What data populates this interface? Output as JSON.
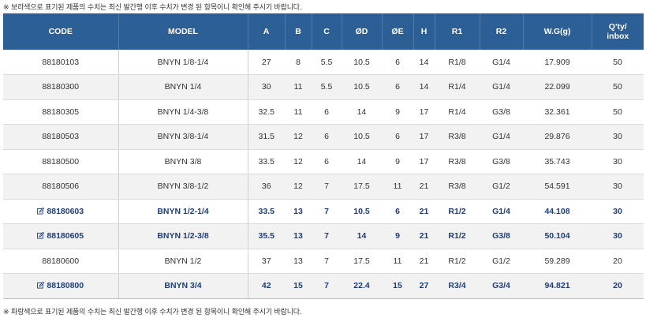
{
  "notes": {
    "top": "※ 보라색으로 표기된 제품의 수치는 최신 발간행 이후 수치가 변경 된 항목이니 확인해 주시기 바랍니다.",
    "bottom": "※ 파랑색으로 표기된 제품의 수치는 최신 발간행 이후 수치가 변경 된 항목이니 확인해 주시기 바랍니다."
  },
  "colors": {
    "header": "#2d5f97",
    "highlight_text": "#1e3e7a",
    "alt_row": "#f2f2f2"
  },
  "columns": [
    {
      "key": "code",
      "label": "CODE"
    },
    {
      "key": "model",
      "label": "MODEL"
    },
    {
      "key": "a",
      "label": "A"
    },
    {
      "key": "b",
      "label": "B"
    },
    {
      "key": "c",
      "label": "C"
    },
    {
      "key": "od",
      "label": "ØD"
    },
    {
      "key": "oe",
      "label": "ØE"
    },
    {
      "key": "h",
      "label": "H"
    },
    {
      "key": "r1",
      "label": "R1"
    },
    {
      "key": "r2",
      "label": "R2"
    },
    {
      "key": "wg",
      "label": "W.G(g)"
    },
    {
      "key": "qty",
      "label": "Q'ty/ inbox"
    }
  ],
  "rows": [
    {
      "code": "88180103",
      "model": "BNYN 1/8-1/4",
      "a": "27",
      "b": "8",
      "c": "5.5",
      "od": "10.5",
      "oe": "6",
      "h": "14",
      "r1": "R1/8",
      "r2": "G1/4",
      "wg": "17.909",
      "qty": "50",
      "highlight": false,
      "icon": ""
    },
    {
      "code": "88180300",
      "model": "BNYN 1/4",
      "a": "30",
      "b": "11",
      "c": "5.5",
      "od": "10.5",
      "oe": "6",
      "h": "14",
      "r1": "R1/4",
      "r2": "G1/4",
      "wg": "22.099",
      "qty": "50",
      "highlight": false,
      "icon": ""
    },
    {
      "code": "88180305",
      "model": "BNYN 1/4-3/8",
      "a": "32.5",
      "b": "11",
      "c": "6",
      "od": "14",
      "oe": "9",
      "h": "17",
      "r1": "R1/4",
      "r2": "G3/8",
      "wg": "32.361",
      "qty": "50",
      "highlight": false,
      "icon": ""
    },
    {
      "code": "88180503",
      "model": "BNYN 3/8-1/4",
      "a": "31.5",
      "b": "12",
      "c": "6",
      "od": "10.5",
      "oe": "6",
      "h": "17",
      "r1": "R3/8",
      "r2": "G1/4",
      "wg": "29.876",
      "qty": "30",
      "highlight": false,
      "icon": ""
    },
    {
      "code": "88180500",
      "model": "BNYN 3/8",
      "a": "33.5",
      "b": "12",
      "c": "6",
      "od": "14",
      "oe": "9",
      "h": "17",
      "r1": "R3/8",
      "r2": "G3/8",
      "wg": "35.743",
      "qty": "30",
      "highlight": false,
      "icon": ""
    },
    {
      "code": "88180506",
      "model": "BNYN 3/8-1/2",
      "a": "36",
      "b": "12",
      "c": "7",
      "od": "17.5",
      "oe": "11",
      "h": "21",
      "r1": "R3/8",
      "r2": "G1/2",
      "wg": "54.591",
      "qty": "30",
      "highlight": false,
      "icon": ""
    },
    {
      "code": "88180603",
      "model": "BNYN 1/2-1/4",
      "a": "33.5",
      "b": "13",
      "c": "7",
      "od": "10.5",
      "oe": "6",
      "h": "21",
      "r1": "R1/2",
      "r2": "G1/4",
      "wg": "44.108",
      "qty": "30",
      "highlight": true,
      "icon": "edit-icon"
    },
    {
      "code": "88180605",
      "model": "BNYN 1/2-3/8",
      "a": "35.5",
      "b": "13",
      "c": "7",
      "od": "14",
      "oe": "9",
      "h": "21",
      "r1": "R1/2",
      "r2": "G3/8",
      "wg": "50.104",
      "qty": "30",
      "highlight": true,
      "icon": "edit-icon"
    },
    {
      "code": "88180600",
      "model": "BNYN 1/2",
      "a": "37",
      "b": "13",
      "c": "7",
      "od": "17.5",
      "oe": "11",
      "h": "21",
      "r1": "R1/2",
      "r2": "G1/2",
      "wg": "59.289",
      "qty": "20",
      "highlight": false,
      "icon": ""
    },
    {
      "code": "88180800",
      "model": "BNYN 3/4",
      "a": "42",
      "b": "15",
      "c": "7",
      "od": "22.4",
      "oe": "15",
      "h": "27",
      "r1": "R3/4",
      "r2": "G3/4",
      "wg": "94.821",
      "qty": "20",
      "highlight": true,
      "icon": "edit-icon"
    }
  ]
}
